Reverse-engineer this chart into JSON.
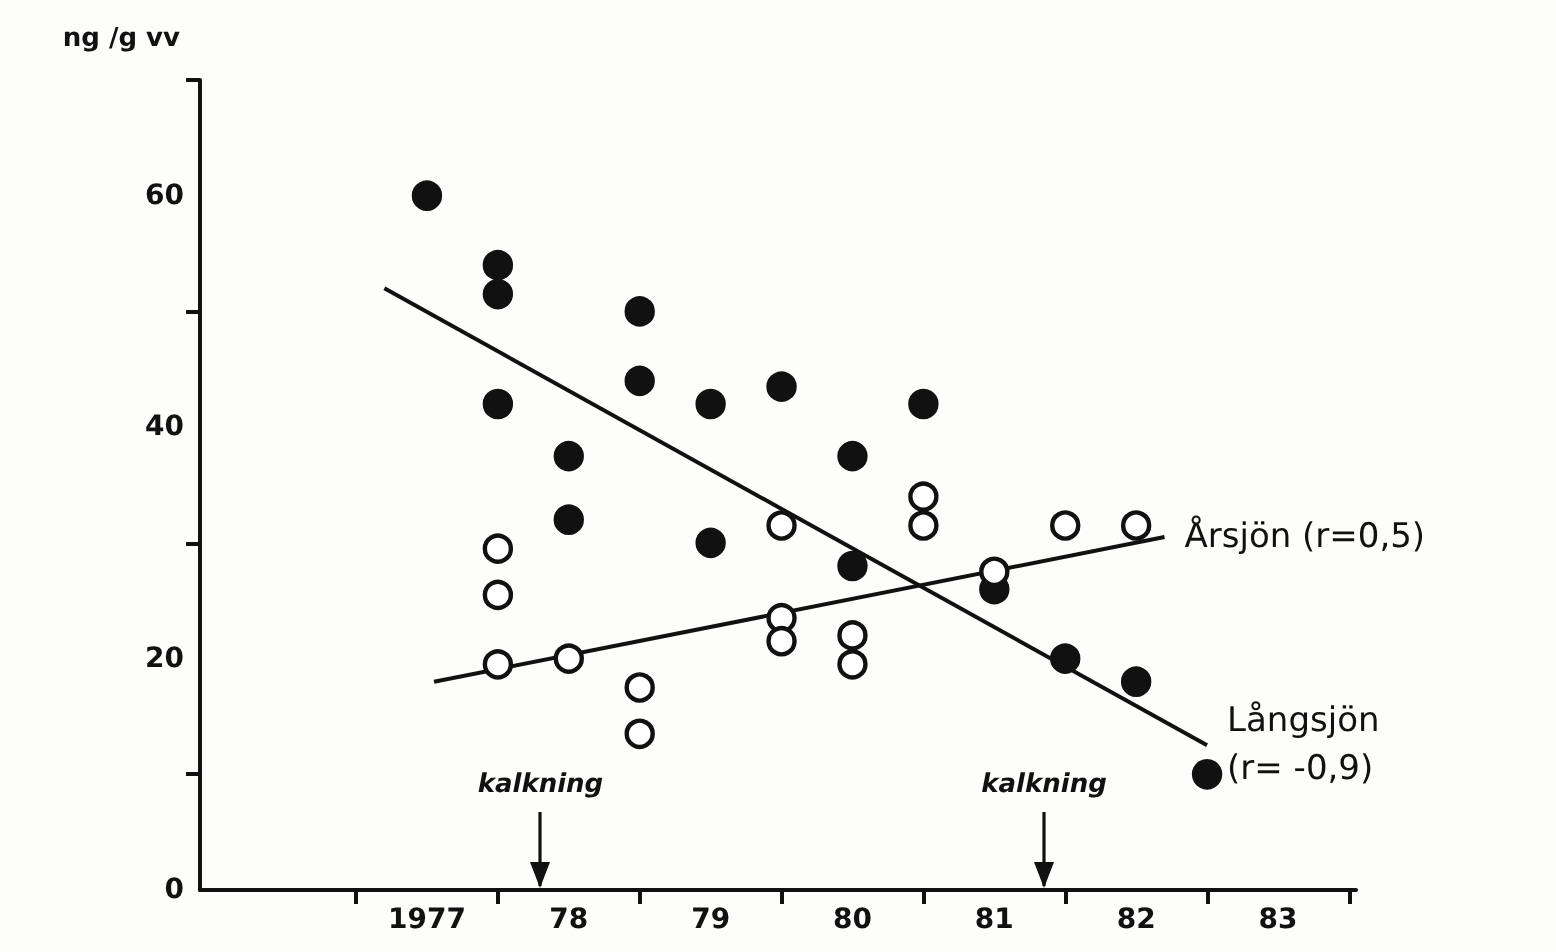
{
  "chart_data": {
    "type": "scatter",
    "ylabel": "ng /g vv",
    "xlim": [
      1975.4,
      1983.55
    ],
    "xticks": [
      {
        "value": 1976.5,
        "label": null
      },
      1977,
      {
        "value": 1977.5,
        "label": null
      },
      {
        "value": 1978,
        "label": "78"
      },
      {
        "value": 1978.5,
        "label": null
      },
      {
        "value": 1979,
        "label": "79"
      },
      {
        "value": 1979.5,
        "label": null
      },
      {
        "value": 1980,
        "label": "80"
      },
      {
        "value": 1980.5,
        "label": null
      },
      {
        "value": 1981,
        "label": "81"
      },
      {
        "value": 1981.5,
        "label": null
      },
      {
        "value": 1982,
        "label": "82"
      },
      {
        "value": 1982.5,
        "label": null
      },
      {
        "value": 1983,
        "label": "83"
      },
      {
        "value": 1983.5,
        "label": null
      }
    ],
    "ylim": [
      0,
      70
    ],
    "yticks": [
      0,
      {
        "value": 10,
        "label": null
      },
      20,
      {
        "value": 30,
        "label": null
      },
      40,
      {
        "value": 50,
        "label": null
      },
      60,
      {
        "value": 70,
        "label": null
      }
    ],
    "grid": false,
    "legend": false,
    "marker": "circle",
    "series": [
      {
        "color": "#111111",
        "x": [
          1977,
          1977.5,
          1977.5,
          1977.5,
          1978,
          1978,
          1978.5,
          1978.5,
          1979,
          1979,
          1979.5,
          1980,
          1980,
          1980.5,
          1981,
          1981.5,
          1982,
          1982.5
        ],
        "values": [
          60,
          54,
          51.5,
          42,
          37.5,
          32,
          50,
          44,
          42,
          30,
          43.5,
          37.5,
          28,
          42,
          26,
          20,
          18,
          10
        ]
      },
      {
        "color": "#ffffff",
        "x": [
          1977.5,
          1977.5,
          1977.5,
          1978,
          1978.5,
          1978.5,
          1979.5,
          1979.5,
          1979.5,
          1980,
          1980,
          1980.5,
          1980.5,
          1981,
          1981.5,
          1982
        ],
        "values": [
          29.5,
          25.5,
          19.5,
          20,
          17.5,
          13.5,
          31.5,
          23.5,
          21.5,
          22,
          19.5,
          34,
          31.5,
          27.5,
          31.5,
          31.5
        ]
      },
      {
        "type": "line",
        "marker": "none",
        "name": "Långsjön\n(r= -0,9)",
        "color": "#111111",
        "x": [
          1976.7,
          1982.5
        ],
        "values": [
          52,
          12.5
        ]
      },
      {
        "type": "line",
        "marker": "none",
        "name": "Årsjön (r=0,5)",
        "color": "#111111",
        "x": [
          1977.05,
          1982.2
        ],
        "values": [
          18,
          30.5
        ]
      }
    ],
    "ref_lines": [
      {
        "axis": "x",
        "value": 1977.8,
        "label": "kalkning"
      },
      {
        "axis": "x",
        "value": 1981.35,
        "label": "kalkning"
      }
    ]
  }
}
